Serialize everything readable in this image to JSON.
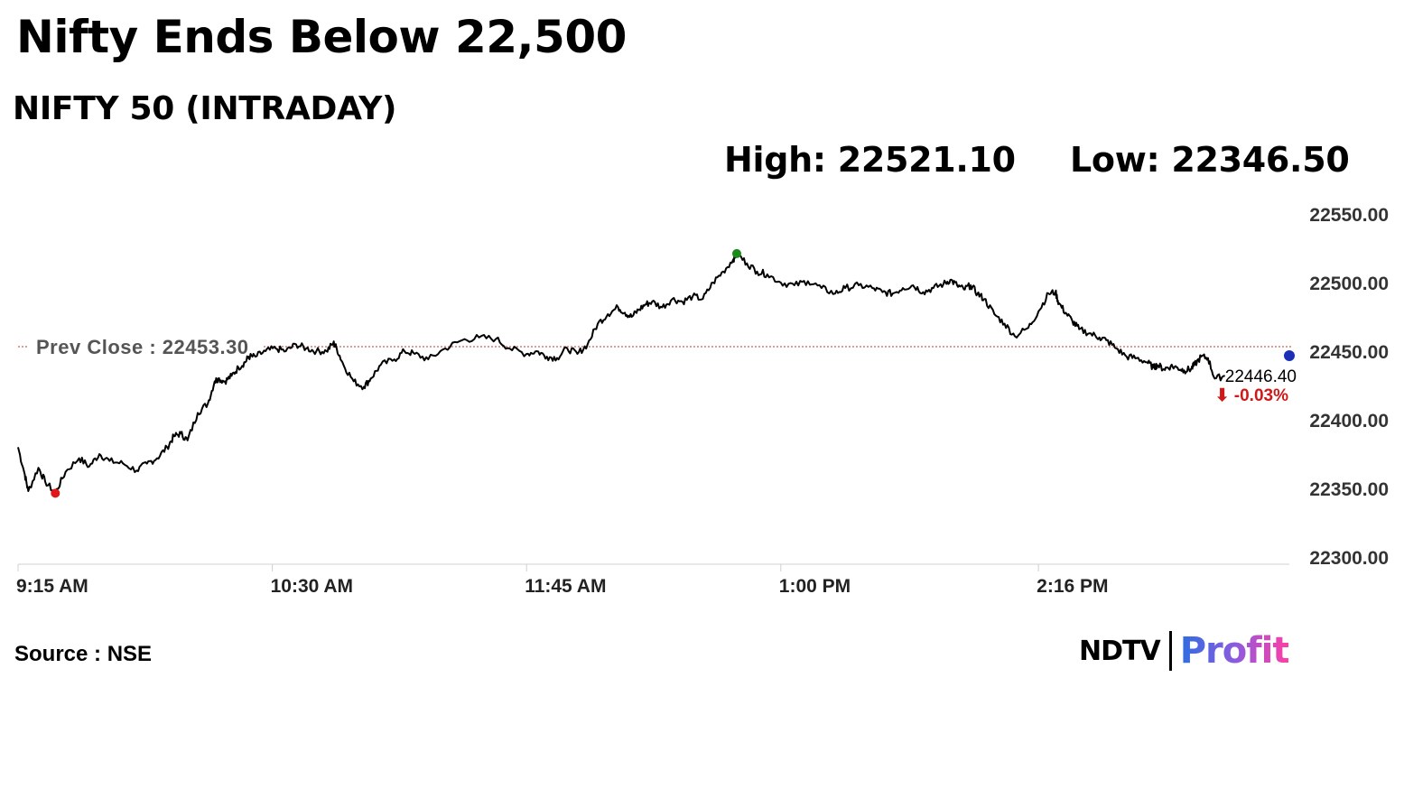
{
  "title": "Nifty Ends Below 22,500",
  "subtitle": "NIFTY 50 (INTRADAY)",
  "stats": {
    "high": "High: 22521.10",
    "low": "Low: 22346.50"
  },
  "source": "Source : NSE",
  "logo": {
    "ndtv": "NDTV",
    "profit": "Profit"
  },
  "colors": {
    "line": "#000000",
    "prev_close_line": "#c0392b",
    "high_marker": "#1a8a1a",
    "low_marker": "#e01818",
    "last_marker": "#1a2fb5",
    "change_text": "#d01818",
    "axis": "#d0d0d0"
  },
  "chart_data": {
    "type": "line",
    "ylim": [
      22300,
      22550
    ],
    "y_ticks": [
      22550,
      22500,
      22450,
      22400,
      22350,
      22300
    ],
    "y_tick_labels": [
      "22550.00",
      "22500.00",
      "22450.00",
      "22400.00",
      "22350.00",
      "22300.00"
    ],
    "x_tick_labels": [
      "9:15 AM",
      "10:30 AM",
      "11:45 AM",
      "1:00 PM",
      "2:16 PM"
    ],
    "x_tick_minutes": [
      555,
      630,
      705,
      780,
      856
    ],
    "x_range_minutes": [
      555,
      930
    ],
    "prev_close": {
      "label": "Prev Close : 22453.30",
      "value": 22453.3
    },
    "high": {
      "time_minutes": 767,
      "value": 22521.1
    },
    "low": {
      "time_minutes": 566,
      "value": 22346.5
    },
    "last": {
      "label": "22446.40",
      "change_label": "⬇ -0.03%",
      "time_minutes": 930,
      "value": 22446.4
    },
    "series": [
      {
        "x": [
          555,
          557,
          558,
          561,
          563,
          566,
          569,
          573,
          576,
          579,
          582,
          586,
          590,
          593,
          596,
          599,
          601,
          603,
          605,
          608,
          611,
          613,
          614,
          616,
          618,
          620,
          622,
          623,
          625,
          628,
          631,
          634,
          637,
          640,
          643,
          646,
          648,
          649,
          651,
          654,
          657,
          659,
          662,
          666,
          669,
          672,
          676,
          681,
          686,
          691,
          696,
          700,
          705,
          708,
          711,
          714,
          717,
          720,
          723,
          726,
          729,
          732,
          734,
          736,
          738,
          740,
          742,
          745,
          748,
          751,
          754,
          757,
          760,
          763,
          766,
          767,
          770,
          773,
          776,
          780,
          784,
          788,
          792,
          796,
          799,
          803,
          807,
          810,
          813,
          816,
          819,
          822,
          825,
          828,
          830,
          832,
          834,
          836,
          838,
          840,
          843,
          846,
          849,
          853,
          856,
          859,
          861,
          862,
          864,
          866,
          868,
          871,
          874,
          876,
          879,
          882,
          885,
          888,
          890,
          891,
          893,
          895,
          897,
          899,
          901,
          902,
          904,
          906,
          908,
          911
        ],
        "y": [
          22380,
          22360,
          22348,
          22365,
          22355,
          22346.5,
          22362,
          22372,
          22366,
          22375,
          22370,
          22368,
          22363,
          22368,
          22372,
          22380,
          22388,
          22390,
          22385,
          22405,
          22412,
          22428,
          22430,
          22428,
          22432,
          22438,
          22442,
          22446,
          22446,
          22450,
          22452,
          22450,
          22455,
          22452,
          22450,
          22450,
          22456,
          22452,
          22440,
          22428,
          22424,
          22430,
          22440,
          22444,
          22450,
          22448,
          22444,
          22452,
          22458,
          22460,
          22459,
          22452,
          22448,
          22450,
          22446,
          22445,
          22452,
          22448,
          22455,
          22470,
          22477,
          22482,
          22478,
          22475,
          22480,
          22484,
          22486,
          22482,
          22488,
          22486,
          22490,
          22488,
          22500,
          22508,
          22517,
          22521.1,
          22514,
          22508,
          22506,
          22500,
          22498,
          22501,
          22496,
          22492,
          22496,
          22498,
          22496,
          22493,
          22492,
          22496,
          22498,
          22493,
          22496,
          22499,
          22502,
          22498,
          22495,
          22498,
          22492,
          22488,
          22477,
          22470,
          22461,
          22467,
          22479,
          22492,
          22493,
          22485,
          22478,
          22472,
          22466,
          22463,
          22460,
          22458,
          22452,
          22446,
          22445,
          22442,
          22438,
          22440,
          22437,
          22439,
          22438,
          22436,
          22437,
          22440,
          22446,
          22445,
          22430,
          22432
        ]
      }
    ]
  }
}
